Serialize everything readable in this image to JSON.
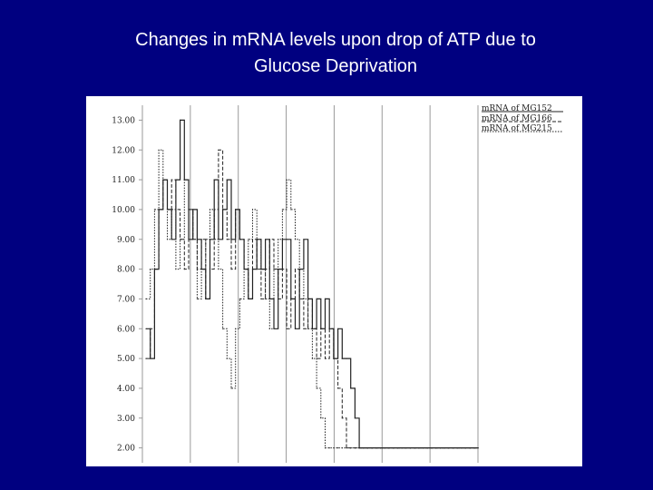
{
  "slide": {
    "title_line1": "Changes in mRNA levels upon drop of ATP due to",
    "title_line2": "Glucose Deprivation"
  },
  "colors": {
    "background": "#000080",
    "title": "#ffffff",
    "panel": "#ffffff",
    "series": "#222222",
    "grid": "#9a9a9a"
  },
  "chart_data": {
    "type": "line",
    "step": true,
    "title": "",
    "xlabel": "",
    "ylabel": "",
    "ylim": [
      1.5,
      13.5
    ],
    "y_ticks": [
      {
        "value": 13,
        "label": "13.00"
      },
      {
        "value": 12,
        "label": "12.00"
      },
      {
        "value": 11,
        "label": "11.00"
      },
      {
        "value": 10,
        "label": "10.00"
      },
      {
        "value": 9,
        "label": "9.00"
      },
      {
        "value": 8,
        "label": "8.00"
      },
      {
        "value": 7,
        "label": "7.00"
      },
      {
        "value": 6,
        "label": "6.00"
      },
      {
        "value": 5,
        "label": "5.00"
      },
      {
        "value": 4,
        "label": "4.00"
      },
      {
        "value": 3,
        "label": "3.00"
      },
      {
        "value": 2,
        "label": "2.00"
      }
    ],
    "x_gridlines": 7,
    "grid": true,
    "legend_position": "top-right",
    "n_points": 78,
    "series": [
      {
        "name": "mRNA of MG152",
        "style": "solid",
        "values": [
          6,
          5,
          8,
          10,
          11,
          10,
          9,
          11,
          13,
          11,
          9,
          10,
          9,
          8,
          7,
          9,
          11,
          9,
          10,
          11,
          9,
          10,
          9,
          8,
          7,
          8,
          9,
          8,
          9,
          7,
          6,
          8,
          9,
          9,
          7,
          6,
          8,
          9,
          7,
          6,
          7,
          6,
          7,
          6,
          5,
          6,
          5,
          5,
          4,
          3,
          2,
          2,
          2,
          2,
          2,
          2,
          2,
          2,
          2,
          2,
          2,
          2,
          2,
          2,
          2,
          2,
          2,
          2,
          2,
          2,
          2,
          2,
          2,
          2,
          2,
          2,
          2,
          2
        ]
      },
      {
        "name": "mRNA of MG166",
        "style": "dashed",
        "values": [
          5,
          6,
          8,
          10,
          11,
          10,
          11,
          10,
          9,
          8,
          10,
          9,
          8,
          9,
          7,
          8,
          10,
          12,
          10,
          9,
          8,
          10,
          9,
          8,
          7,
          9,
          8,
          7,
          8,
          9,
          8,
          7,
          8,
          6,
          7,
          8,
          7,
          6,
          7,
          6,
          5,
          6,
          5,
          6,
          5,
          4,
          3,
          2,
          2,
          2,
          2,
          2,
          2,
          2,
          2,
          2,
          2,
          2,
          2,
          2,
          2,
          2,
          2,
          2,
          2,
          2,
          2,
          2,
          2,
          2,
          2,
          2,
          2,
          2,
          2,
          2,
          2,
          2
        ]
      },
      {
        "name": "mRNA of MG215",
        "style": "dotted",
        "values": [
          7,
          8,
          10,
          12,
          11,
          9,
          10,
          8,
          9,
          11,
          10,
          9,
          7,
          8,
          9,
          10,
          9,
          8,
          6,
          5,
          4,
          6,
          7,
          8,
          9,
          10,
          9,
          8,
          7,
          6,
          8,
          9,
          10,
          11,
          10,
          9,
          8,
          7,
          6,
          5,
          4,
          3,
          2,
          2,
          2,
          2,
          2,
          2,
          2,
          2,
          2,
          2,
          2,
          2,
          2,
          2,
          2,
          2,
          2,
          2,
          2,
          2,
          2,
          2,
          2,
          2,
          2,
          2,
          2,
          2,
          2,
          2,
          2,
          2,
          2,
          2,
          2,
          2
        ]
      }
    ]
  }
}
